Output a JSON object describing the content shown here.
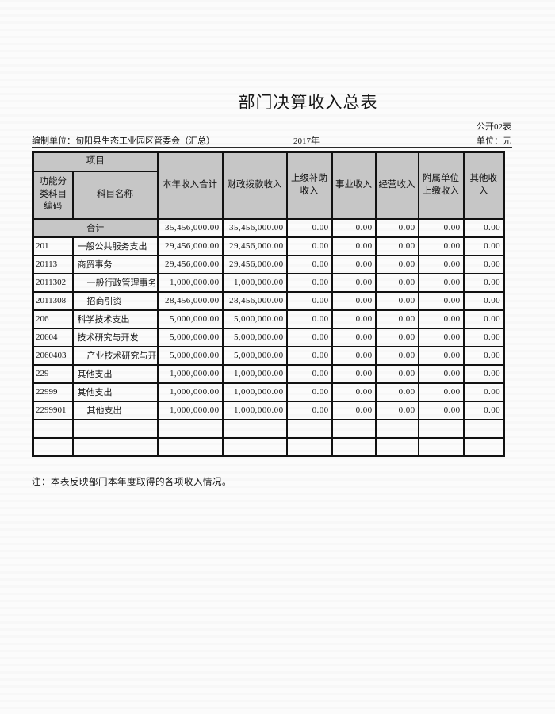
{
  "page": {
    "title": "部门决算收入总表",
    "doc_number": "公开02表",
    "prepared_by": "编制单位：旬阳县生态工业园区管委会（汇总）",
    "year": "2017年",
    "unit": "单位：元",
    "footnote": "注：本表反映部门本年度取得的各项收入情况。"
  },
  "colors": {
    "header_fill": "#c6c6c6",
    "border": "#111111",
    "background": "#fbfbfb"
  },
  "table": {
    "header": {
      "project": "项目",
      "code_label": "功能分类科目编码",
      "name_label": "科目名称",
      "value_columns": [
        "本年收入合计",
        "财政拨款收入",
        "上级补助收入",
        "事业收入",
        "经营收入",
        "附属单位上缴收入",
        "其他收入"
      ]
    },
    "rows": [
      {
        "total": true,
        "code": "",
        "name": "合计",
        "indent": 0,
        "values": [
          "35,456,000.00",
          "35,456,000.00",
          "0.00",
          "0.00",
          "0.00",
          "0.00",
          "0.00"
        ]
      },
      {
        "total": false,
        "code": "201",
        "name": "一般公共服务支出",
        "indent": 0,
        "values": [
          "29,456,000.00",
          "29,456,000.00",
          "0.00",
          "0.00",
          "0.00",
          "0.00",
          "0.00"
        ]
      },
      {
        "total": false,
        "code": "20113",
        "name": "商贸事务",
        "indent": 0,
        "values": [
          "29,456,000.00",
          "29,456,000.00",
          "0.00",
          "0.00",
          "0.00",
          "0.00",
          "0.00"
        ]
      },
      {
        "total": false,
        "code": "2011302",
        "name": "一般行政管理事务",
        "indent": 1,
        "values": [
          "1,000,000.00",
          "1,000,000.00",
          "0.00",
          "0.00",
          "0.00",
          "0.00",
          "0.00"
        ]
      },
      {
        "total": false,
        "code": "2011308",
        "name": "招商引资",
        "indent": 1,
        "values": [
          "28,456,000.00",
          "28,456,000.00",
          "0.00",
          "0.00",
          "0.00",
          "0.00",
          "0.00"
        ]
      },
      {
        "total": false,
        "code": "206",
        "name": "科学技术支出",
        "indent": 0,
        "values": [
          "5,000,000.00",
          "5,000,000.00",
          "0.00",
          "0.00",
          "0.00",
          "0.00",
          "0.00"
        ]
      },
      {
        "total": false,
        "code": "20604",
        "name": "技术研究与开发",
        "indent": 0,
        "values": [
          "5,000,000.00",
          "5,000,000.00",
          "0.00",
          "0.00",
          "0.00",
          "0.00",
          "0.00"
        ]
      },
      {
        "total": false,
        "code": "2060403",
        "name": "产业技术研究与开发",
        "indent": 1,
        "values": [
          "5,000,000.00",
          "5,000,000.00",
          "0.00",
          "0.00",
          "0.00",
          "0.00",
          "0.00"
        ]
      },
      {
        "total": false,
        "code": "229",
        "name": "其他支出",
        "indent": 0,
        "values": [
          "1,000,000.00",
          "1,000,000.00",
          "0.00",
          "0.00",
          "0.00",
          "0.00",
          "0.00"
        ]
      },
      {
        "total": false,
        "code": "22999",
        "name": "其他支出",
        "indent": 0,
        "values": [
          "1,000,000.00",
          "1,000,000.00",
          "0.00",
          "0.00",
          "0.00",
          "0.00",
          "0.00"
        ]
      },
      {
        "total": false,
        "code": "2299901",
        "name": "其他支出",
        "indent": 1,
        "values": [
          "1,000,000.00",
          "1,000,000.00",
          "0.00",
          "0.00",
          "0.00",
          "0.00",
          "0.00"
        ]
      },
      {
        "total": false,
        "code": "",
        "name": "",
        "indent": 0,
        "values": [
          "",
          "",
          "",
          "",
          "",
          "",
          ""
        ]
      },
      {
        "total": false,
        "code": "",
        "name": "",
        "indent": 0,
        "values": [
          "",
          "",
          "",
          "",
          "",
          "",
          ""
        ]
      }
    ]
  }
}
